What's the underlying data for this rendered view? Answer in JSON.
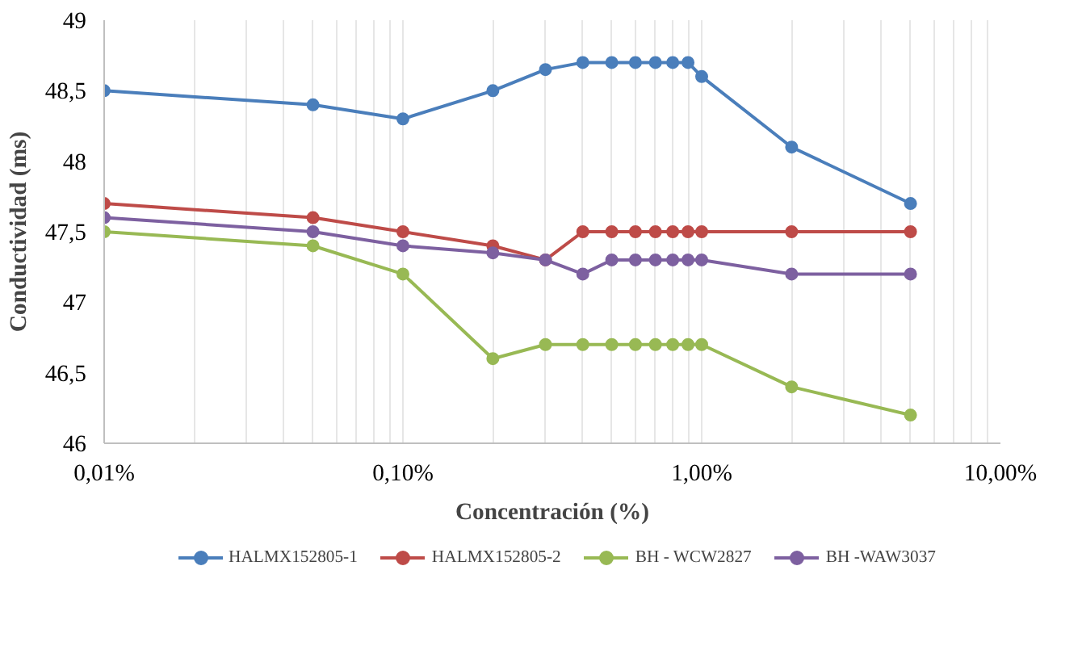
{
  "chart_data": {
    "type": "line",
    "xlabel": "Concentración (%)",
    "ylabel": "Conductividad (ms)",
    "x": [
      0.01,
      0.05,
      0.1,
      0.2,
      0.3,
      0.4,
      0.5,
      0.6,
      0.7,
      0.8,
      0.9,
      1,
      2,
      5
    ],
    "series": [
      {
        "name": "HALMX152805-1",
        "color": "#4a7ebb",
        "values": [
          48.5,
          48.4,
          48.3,
          48.5,
          48.65,
          48.7,
          48.7,
          48.7,
          48.7,
          48.7,
          48.7,
          48.6,
          48.1,
          47.7
        ]
      },
      {
        "name": "HALMX152805-2",
        "color": "#be4b48",
        "values": [
          47.7,
          47.6,
          47.5,
          47.4,
          47.3,
          47.5,
          47.5,
          47.5,
          47.5,
          47.5,
          47.5,
          47.5,
          47.5,
          47.5
        ]
      },
      {
        "name": "BH - WCW2827",
        "color": "#98b954",
        "values": [
          47.5,
          47.4,
          47.2,
          46.6,
          46.7,
          46.7,
          46.7,
          46.7,
          46.7,
          46.7,
          46.7,
          46.7,
          46.4,
          46.2
        ]
      },
      {
        "name": "BH -WAW3037",
        "color": "#7d60a0",
        "values": [
          47.6,
          47.5,
          47.4,
          47.35,
          47.3,
          47.2,
          47.3,
          47.3,
          47.3,
          47.3,
          47.3,
          47.3,
          47.2,
          47.2
        ]
      }
    ],
    "log": "x",
    "xlim": [
      0.01,
      10
    ],
    "xticks": [
      {
        "value": 0.01,
        "label": "0,01%"
      },
      {
        "value": 0.02,
        "label": null
      },
      {
        "value": 0.03,
        "label": null
      },
      {
        "value": 0.04,
        "label": null
      },
      {
        "value": 0.05,
        "label": null
      },
      {
        "value": 0.06,
        "label": null
      },
      {
        "value": 0.07,
        "label": null
      },
      {
        "value": 0.08,
        "label": null
      },
      {
        "value": 0.09,
        "label": null
      },
      {
        "value": 0.1,
        "label": "0,10%"
      },
      {
        "value": 0.2,
        "label": null
      },
      {
        "value": 0.3,
        "label": null
      },
      {
        "value": 0.4,
        "label": null
      },
      {
        "value": 0.5,
        "label": null
      },
      {
        "value": 0.6,
        "label": null
      },
      {
        "value": 0.7,
        "label": null
      },
      {
        "value": 0.8,
        "label": null
      },
      {
        "value": 0.9,
        "label": null
      },
      {
        "value": 1,
        "label": "1,00%"
      },
      {
        "value": 2,
        "label": null
      },
      {
        "value": 3,
        "label": null
      },
      {
        "value": 4,
        "label": null
      },
      {
        "value": 5,
        "label": null
      },
      {
        "value": 6,
        "label": null
      },
      {
        "value": 7,
        "label": null
      },
      {
        "value": 8,
        "label": null
      },
      {
        "value": 9,
        "label": null
      },
      {
        "value": 10,
        "label": "10,00%"
      }
    ],
    "ylim": [
      46,
      49
    ],
    "yticks": [
      46,
      {
        "value": 46.5,
        "label": "46,5"
      },
      47,
      {
        "value": 47.5,
        "label": "47,5"
      },
      48,
      {
        "value": 48.5,
        "label": "48,5"
      },
      49
    ],
    "grid": "x",
    "legend": "bottom",
    "marker": "circle",
    "line_style": "solid"
  }
}
